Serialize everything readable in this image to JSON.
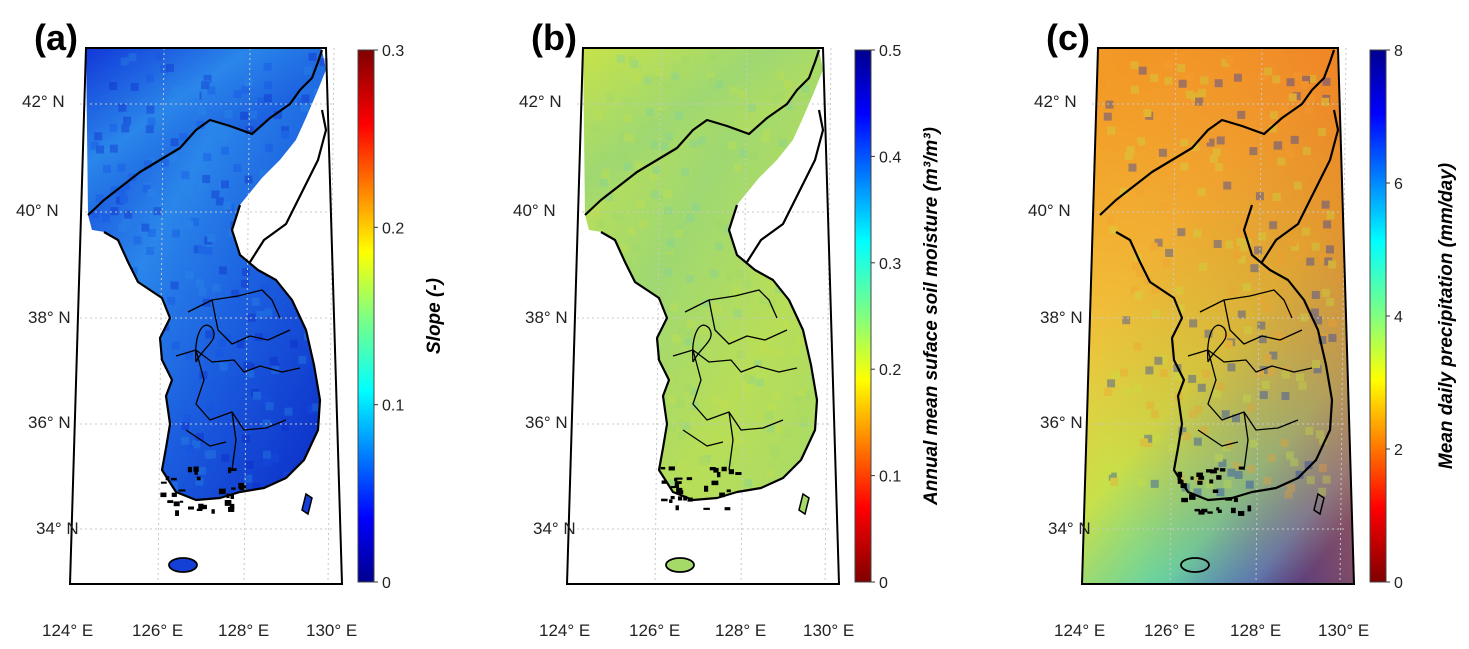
{
  "panels": [
    {
      "id": "a",
      "label": "(a)",
      "colorbar": {
        "title": "Slope (-)",
        "ticks": [
          "0",
          "0.1",
          "0.2",
          "0.3"
        ],
        "colormap": "jet",
        "range": [
          0,
          0.3
        ]
      },
      "fill_colors": [
        "#0a24c8",
        "#1550e6",
        "#2a8be8"
      ],
      "sea_color": "#ffffff"
    },
    {
      "id": "b",
      "label": "(b)",
      "colorbar": {
        "title": "Annual mean suface soil moisture (m³/m³)",
        "ticks": [
          "0",
          "0.1",
          "0.2",
          "0.3",
          "0.4",
          "0.5"
        ],
        "colormap": "jet_r",
        "range": [
          0,
          0.5
        ]
      },
      "fill_colors": [
        "#9ed86a",
        "#c5e04a",
        "#7fd2a0"
      ],
      "sea_color": "#ffffff"
    },
    {
      "id": "c",
      "label": "(c)",
      "colorbar": {
        "title": "Mean daily precipitation (mm/day)",
        "ticks": [
          "0",
          "2",
          "4",
          "6",
          "8"
        ],
        "colormap": "jet_r",
        "range": [
          0,
          8
        ]
      },
      "fill_colors": [
        "#f2a030",
        "#c8e040",
        "#1030c0"
      ],
      "sea_color": "#e8c840"
    }
  ],
  "lat_ticks": [
    "42° N",
    "40° N",
    "38° N",
    "36° N",
    "34° N"
  ],
  "lon_ticks": [
    "124° E",
    "126° E",
    "128° E",
    "130° E"
  ]
}
